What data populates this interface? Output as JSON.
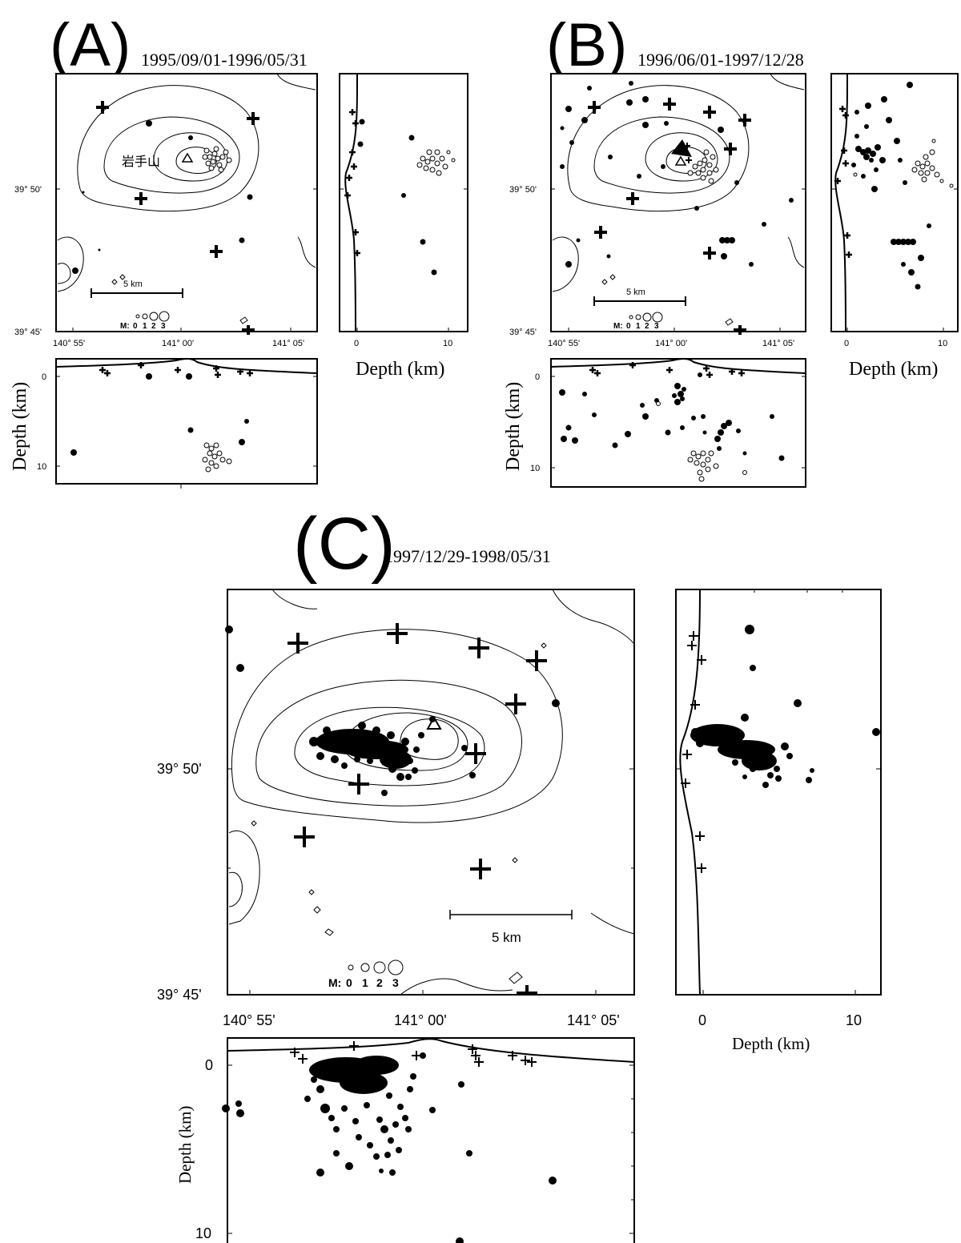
{
  "panels": [
    {
      "id": "A",
      "label": "(A)",
      "date_range": "1995/09/01-1996/05/31",
      "place_name": "岩手山",
      "lon_ticks": [
        "140° 55'",
        "141° 00'",
        "141° 05'"
      ],
      "lat_ticks": [
        "39° 50'",
        "39° 45'"
      ],
      "depth_ticks": [
        "0",
        "10"
      ],
      "depth_label": "Depth (km)",
      "scale_label": "5 km",
      "mag_legend": {
        "prefix": "M:",
        "values": [
          "0",
          "1",
          "2",
          "3"
        ]
      }
    },
    {
      "id": "B",
      "label": "(B)",
      "date_range": "1996/06/01-1997/12/28",
      "lon_ticks": [
        "140° 55'",
        "141° 00'",
        "141° 05'"
      ],
      "lat_ticks": [
        "39° 50'",
        "39° 45'"
      ],
      "depth_ticks": [
        "0",
        "10"
      ],
      "depth_label": "Depth (km)",
      "scale_label": "5 km",
      "mag_legend": {
        "prefix": "M:",
        "values": [
          "0",
          "1",
          "2",
          "3"
        ]
      }
    },
    {
      "id": "C",
      "label": "(C)",
      "date_range": "1997/12/29-1998/05/31",
      "lon_ticks": [
        "140° 55'",
        "141° 00'",
        "141° 05'"
      ],
      "lat_ticks": [
        "39° 50'",
        "39° 45'"
      ],
      "depth_ticks": [
        "0",
        "10"
      ],
      "depth_label": "Depth (km)",
      "scale_label": "5 km",
      "mag_legend": {
        "prefix": "M:",
        "values": [
          "0",
          "1",
          "2",
          "3"
        ]
      }
    }
  ]
}
